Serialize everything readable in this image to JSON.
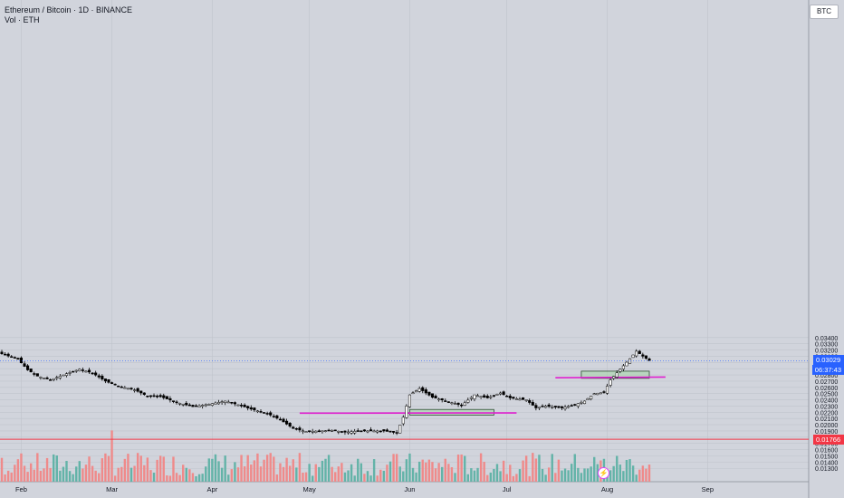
{
  "header": {
    "title": "Ethereum / Bitcoin · 1D · BINANCE",
    "volume_label": "Vol · ETH",
    "currency_button": "BTC"
  },
  "colors": {
    "background": "#d1d4dc",
    "up": "#ffffff",
    "down": "#000000",
    "vol_up": "#63b3a8",
    "vol_down": "#ef8a8a",
    "support_lines": "#e020d0",
    "zones": "#a5d6a7",
    "low_line": "#f23645",
    "last_price_line": "#2962ff"
  },
  "chart_data": {
    "type": "candlestick",
    "symbol": "ETH/BTC",
    "ylim": [
      0.0126,
      0.0354
    ],
    "y_ticks": [
      "0.03400",
      "0.03300",
      "0.03200",
      "0.03100",
      "0.03000",
      "0.02900",
      "0.02800",
      "0.02700",
      "0.02600",
      "0.02500",
      "0.02400",
      "0.02300",
      "0.02200",
      "0.02100",
      "0.02000",
      "0.01900",
      "0.01800",
      "0.01700",
      "0.01600",
      "0.01500",
      "0.01400",
      "0.01300"
    ],
    "x_labels": [
      "Feb",
      "Mar",
      "Apr",
      "May",
      "Jun",
      "Jul",
      "Aug",
      "Sep"
    ],
    "current_price": {
      "value": 0.03029,
      "label": "0.03029",
      "countdown": "06:37:43"
    },
    "low_marker": {
      "value": 0.01766,
      "label": "0.01766"
    },
    "support_lines": [
      {
        "from": "Apr 28",
        "to": "Jul 4",
        "start": 0.02185,
        "end": 0.0219
      },
      {
        "from": "Jul 16",
        "to": "Aug 19",
        "start": 0.02755,
        "end": 0.02765
      }
    ],
    "zones": [
      {
        "from": "Jun 1",
        "to": "Jun 27",
        "low": 0.02155,
        "high": 0.02245
      },
      {
        "from": "Jul 24",
        "to": "Aug 14",
        "low": 0.02745,
        "high": 0.0286
      }
    ],
    "price_anchors": [
      [
        "Jan 20",
        0.0325
      ],
      [
        "Jan 27",
        0.0312
      ],
      [
        "Jan 31",
        0.0305
      ],
      [
        "Feb 3",
        0.0288
      ],
      [
        "Feb 6",
        0.0278
      ],
      [
        "Feb 10",
        0.0272
      ],
      [
        "Feb 15",
        0.0282
      ],
      [
        "Feb 19",
        0.0289
      ],
      [
        "Feb 23",
        0.0283
      ],
      [
        "Feb 27",
        0.027
      ],
      [
        "Mar 3",
        0.0262
      ],
      [
        "Mar 8",
        0.0256
      ],
      [
        "Mar 12",
        0.0246
      ],
      [
        "Mar 16",
        0.0245
      ],
      [
        "Mar 21",
        0.0236
      ],
      [
        "Mar 26",
        0.0229
      ],
      [
        "Mar 31",
        0.0233
      ],
      [
        "Apr 5",
        0.0238
      ],
      [
        "Apr 9",
        0.0232
      ],
      [
        "Apr 13",
        0.0225
      ],
      [
        "Apr 18",
        0.0218
      ],
      [
        "Apr 22",
        0.0208
      ],
      [
        "Apr 26",
        0.0194
      ],
      [
        "Apr 30",
        0.0189
      ],
      [
        "May 8",
        0.0191
      ],
      [
        "May 12",
        0.0188
      ],
      [
        "May 16",
        0.019
      ],
      [
        "May 24",
        0.019
      ],
      [
        "May 28",
        0.0187
      ],
      [
        "May 30",
        0.0212
      ],
      [
        "Jun 1",
        0.0248
      ],
      [
        "Jun 4",
        0.0258
      ],
      [
        "Jun 8",
        0.0244
      ],
      [
        "Jun 13",
        0.0237
      ],
      [
        "Jun 17",
        0.0231
      ],
      [
        "Jun 21",
        0.0248
      ],
      [
        "Jun 25",
        0.0243
      ],
      [
        "Jun 29",
        0.0251
      ],
      [
        "Jul 2",
        0.0243
      ],
      [
        "Jul 7",
        0.024
      ],
      [
        "Jul 10",
        0.0227
      ],
      [
        "Jul 13",
        0.023
      ],
      [
        "Jul 18",
        0.0227
      ],
      [
        "Jul 22",
        0.0232
      ],
      [
        "Jul 25",
        0.0238
      ],
      [
        "Jul 28",
        0.025
      ],
      [
        "Jul 31",
        0.0252
      ],
      [
        "Aug 2",
        0.0272
      ],
      [
        "Aug 5",
        0.0289
      ],
      [
        "Aug 8",
        0.0306
      ],
      [
        "Aug 10",
        0.0318
      ],
      [
        "Aug 12",
        0.031
      ],
      [
        "Aug 14",
        0.03029
      ]
    ]
  }
}
